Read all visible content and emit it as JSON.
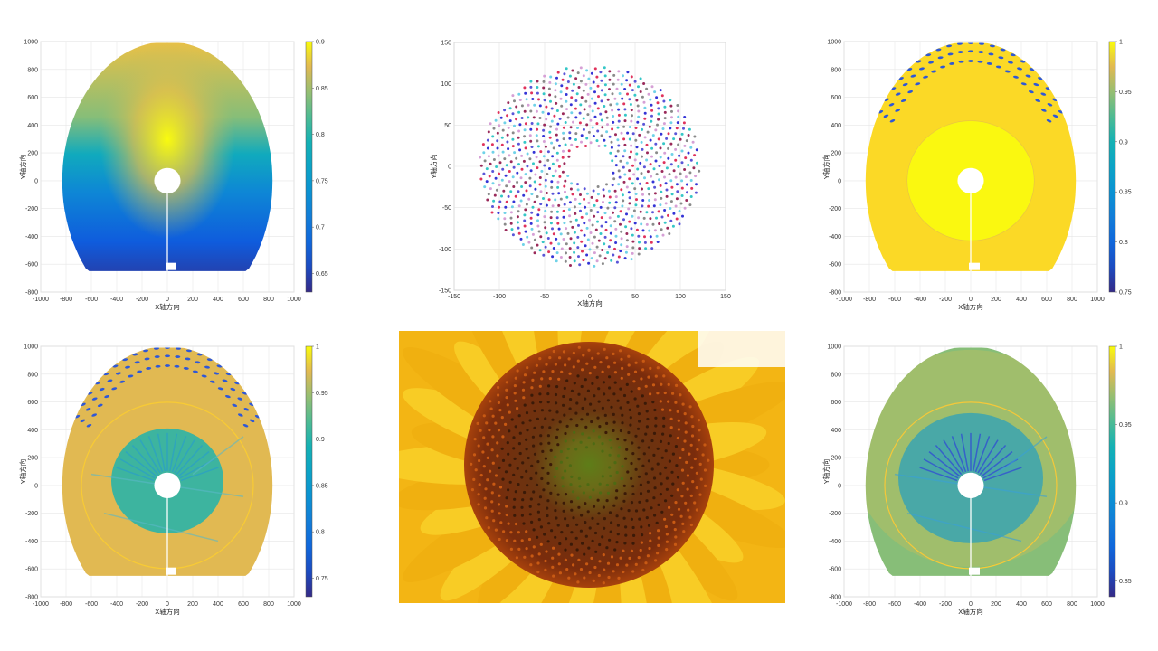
{
  "figure": {
    "background": "#ffffff"
  },
  "chart_data": [
    {
      "id": "field-1",
      "type": "heatmap",
      "xlabel": "X轴方向",
      "ylabel": "Y轴方向",
      "xlim": [
        -1000,
        1000
      ],
      "ylim": [
        -800,
        1000
      ],
      "x_ticks": [
        -1000,
        -800,
        -600,
        -400,
        -200,
        0,
        200,
        400,
        600,
        800,
        1000
      ],
      "y_ticks": [
        -800,
        -600,
        -400,
        -200,
        0,
        200,
        400,
        600,
        800,
        1000
      ],
      "grid": true,
      "colorbar": {
        "min": 0.63,
        "max": 0.9,
        "ticks": [
          "0.9",
          "0.85",
          "0.8",
          "0.75",
          "0.7",
          "0.65"
        ]
      },
      "colormap": "parula",
      "field_radius": 1000,
      "hole_radius": 80,
      "high_value_center": [
        0,
        300
      ]
    },
    {
      "id": "heliostat-layout",
      "type": "scatter",
      "xlabel": "X轴方向",
      "ylabel": "Y轴方向",
      "xlim": [
        -150,
        150
      ],
      "ylim": [
        -150,
        150
      ],
      "x_ticks": [
        -150,
        -100,
        -50,
        0,
        50,
        100,
        150
      ],
      "y_ticks": [
        -150,
        -100,
        -50,
        0,
        50,
        100,
        150
      ],
      "grid": true,
      "pattern": "fermat-spiral",
      "inner_radius": 25,
      "outer_radius": 122,
      "point_colors": [
        "#e0335c",
        "#3434d6",
        "#6fd2e8",
        "#d6a0d6",
        "#8a8a8a",
        "#9a2a5a",
        "#35c7c7",
        "#5a55d8"
      ]
    },
    {
      "id": "field-2",
      "type": "heatmap",
      "xlabel": "X轴方向",
      "ylabel": "Y轴方向",
      "xlim": [
        -1000,
        1000
      ],
      "ylim": [
        -800,
        1000
      ],
      "x_ticks": [
        -1000,
        -800,
        -600,
        -400,
        -200,
        0,
        200,
        400,
        600,
        800,
        1000
      ],
      "y_ticks": [
        -800,
        -600,
        -400,
        -200,
        0,
        200,
        400,
        600,
        800,
        1000
      ],
      "grid": true,
      "colorbar": {
        "min": 0.75,
        "max": 1,
        "ticks": [
          "1",
          "0.95",
          "0.9",
          "0.85",
          "0.8",
          "0.75"
        ]
      },
      "colormap": "parula",
      "field_radius": 1000,
      "hole_radius": 80,
      "shadow_rings": [
        860,
        930,
        990
      ]
    },
    {
      "id": "field-3",
      "type": "heatmap",
      "xlabel": "X轴方向",
      "ylabel": "Y轴方向",
      "xlim": [
        -1000,
        1000
      ],
      "ylim": [
        -800,
        1000
      ],
      "x_ticks": [
        -1000,
        -800,
        -600,
        -400,
        -200,
        0,
        200,
        400,
        600,
        800,
        1000
      ],
      "y_ticks": [
        -800,
        -600,
        -400,
        -200,
        0,
        200,
        400,
        600,
        800,
        1000
      ],
      "grid": true,
      "colorbar": {
        "min": 0.73,
        "max": 1,
        "ticks": [
          "1",
          "0.95",
          "0.9",
          "0.85",
          "0.8",
          "0.75"
        ]
      },
      "colormap": "parula",
      "field_radius": 1000,
      "hole_radius": 80,
      "shadow_rings": [
        860,
        930,
        990
      ]
    },
    {
      "id": "field-4",
      "type": "heatmap",
      "xlabel": "X轴方向",
      "ylabel": "Y轴方向",
      "xlim": [
        -1000,
        1000
      ],
      "ylim": [
        -800,
        1000
      ],
      "x_ticks": [
        -1000,
        -800,
        -600,
        -400,
        -200,
        0,
        200,
        400,
        600,
        800,
        1000
      ],
      "y_ticks": [
        -800,
        -600,
        -400,
        -200,
        0,
        200,
        400,
        600,
        800,
        1000
      ],
      "grid": true,
      "colorbar": {
        "min": 0.84,
        "max": 1,
        "ticks": [
          "1",
          "0.95",
          "0.9",
          "0.85"
        ]
      },
      "colormap": "parula",
      "field_radius": 1000,
      "hole_radius": 80
    }
  ],
  "photo": {
    "subject": "sunflower-head",
    "colors": {
      "petal": "#f6c51a",
      "disk_outer": "#7a2a0c",
      "disk_center": "#6e8a1c"
    }
  }
}
